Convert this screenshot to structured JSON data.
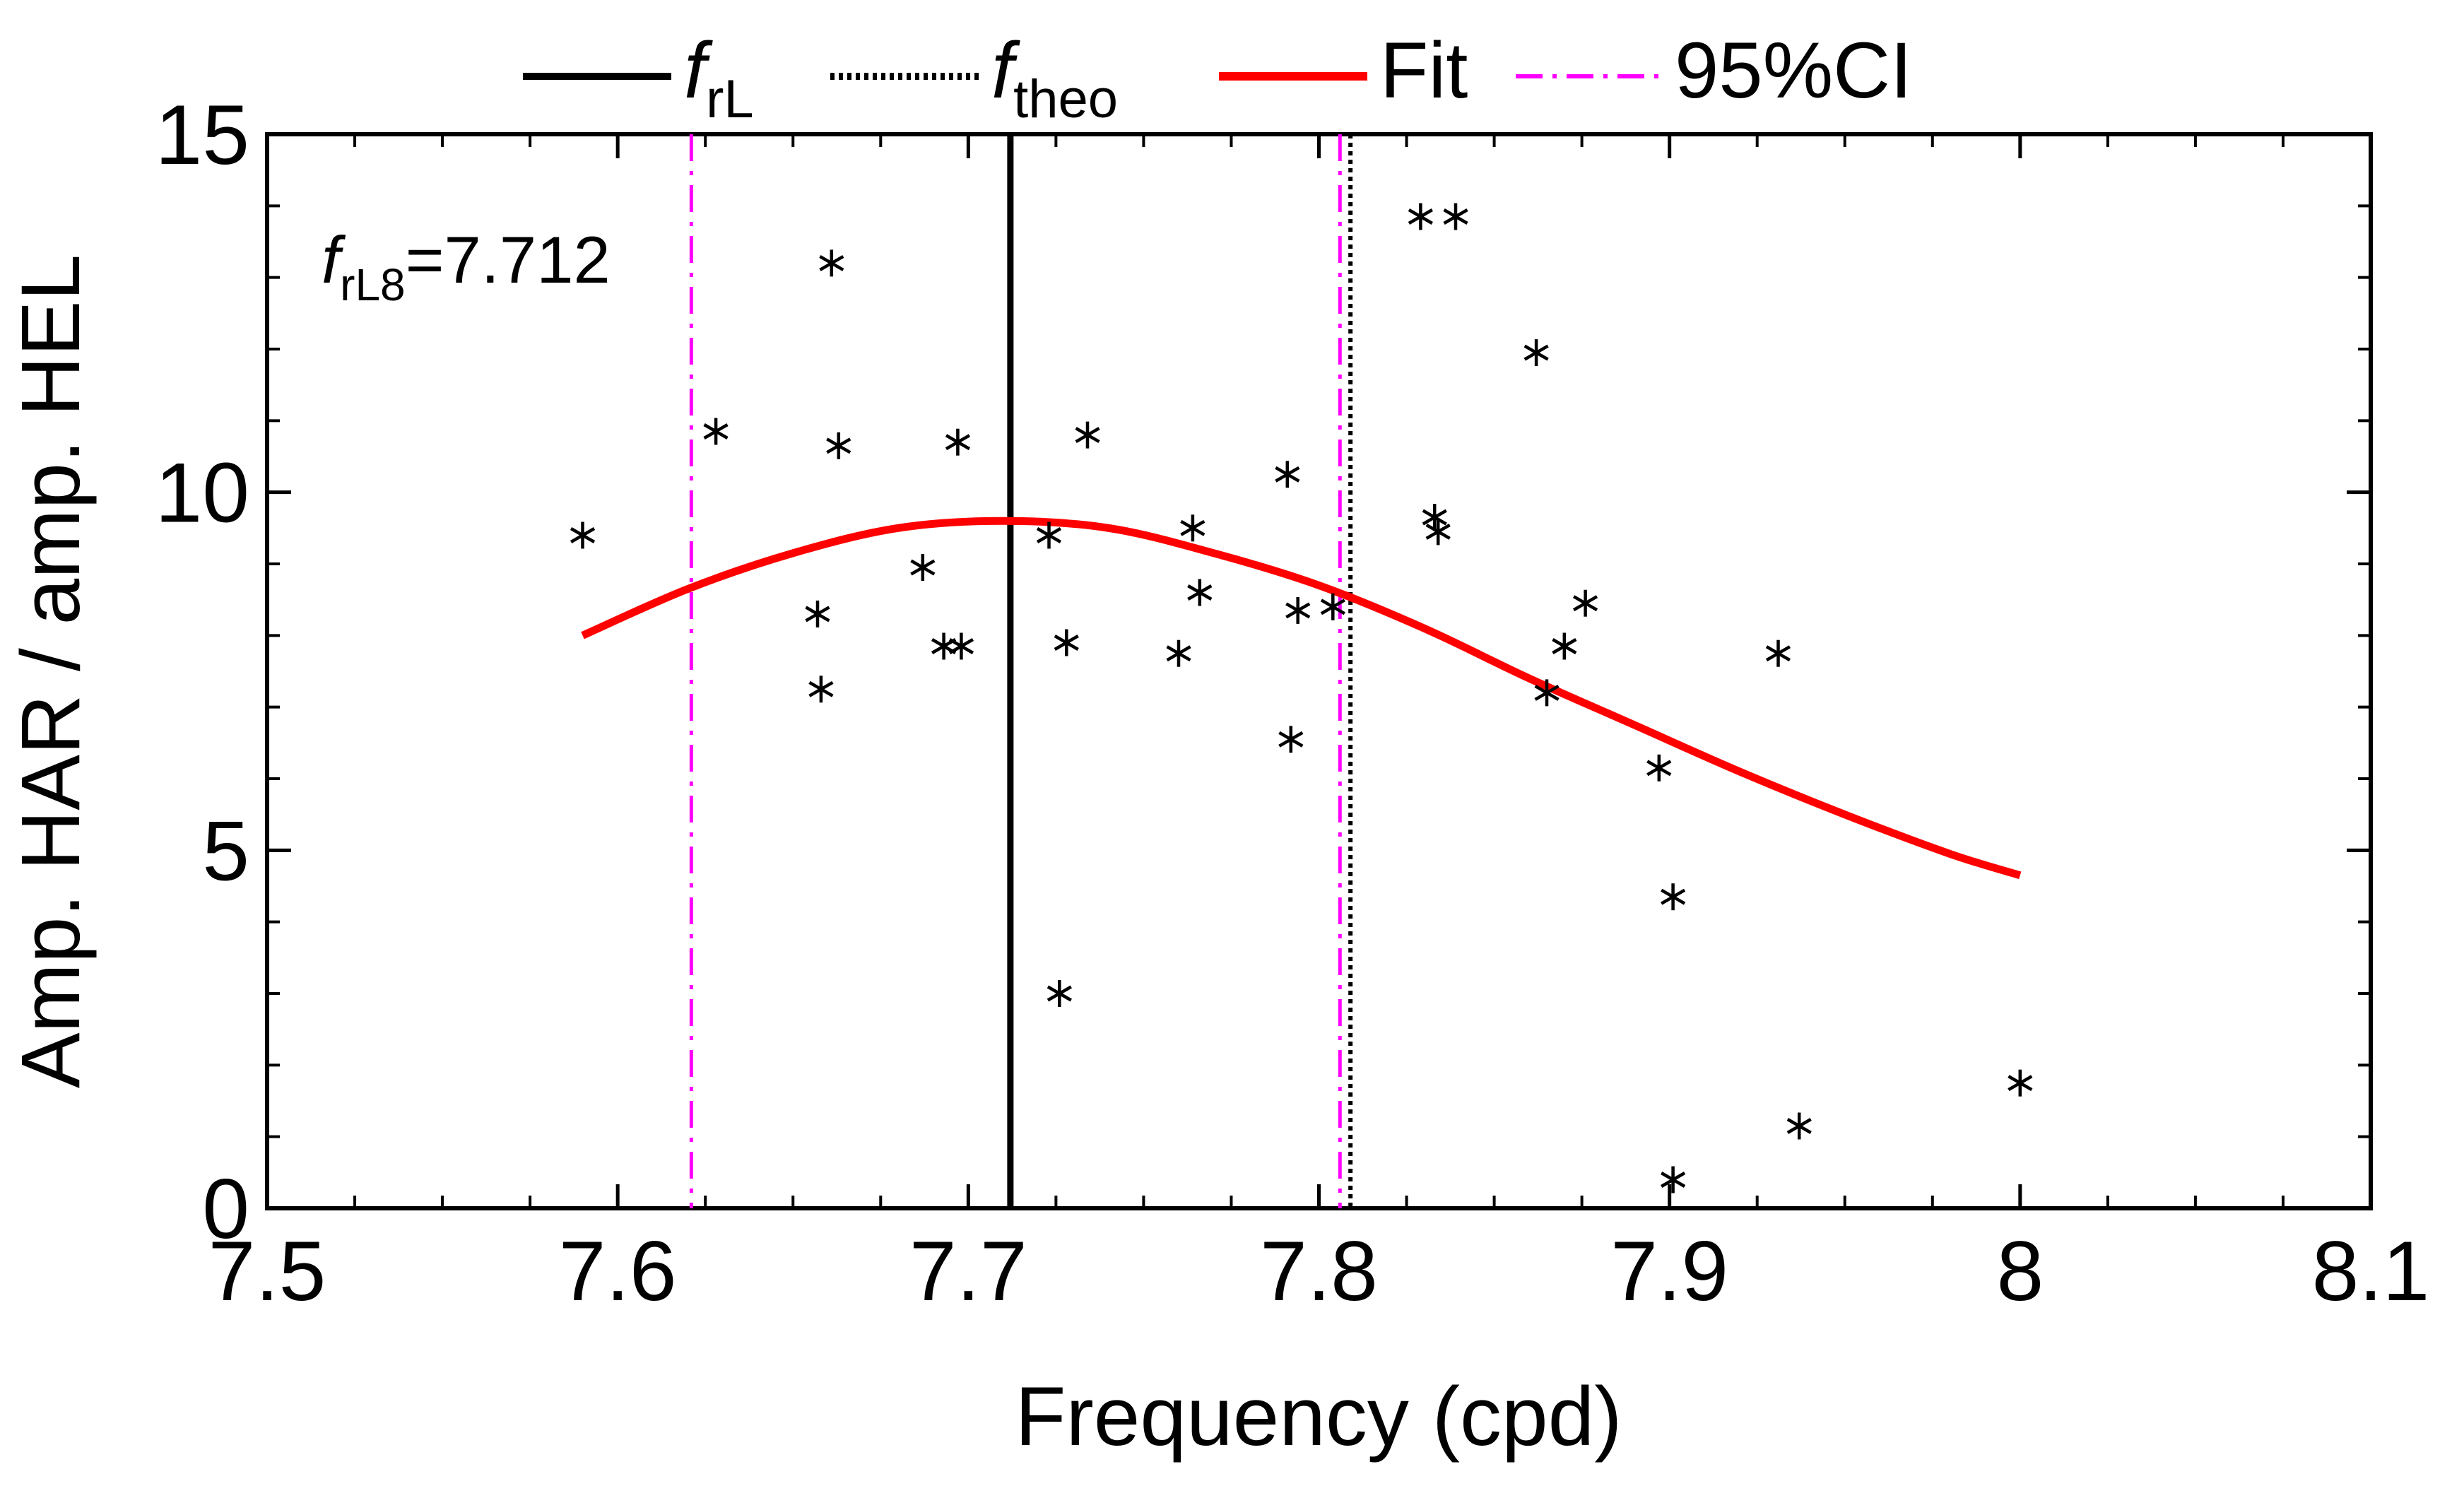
{
  "chart_data": {
    "type": "scatter",
    "xlabel": "Frequency (cpd)",
    "ylabel": "Amp. HAR / amp. HEL",
    "xlim": [
      7.5,
      8.1
    ],
    "ylim": [
      0,
      15
    ],
    "x_ticks": [
      "7.5",
      "7.6",
      "7.7",
      "7.8",
      "7.9",
      "8",
      "8.1"
    ],
    "y_ticks": [
      "0",
      "5",
      "10",
      "15"
    ],
    "grid": false,
    "legend": {
      "placement": "top-outside",
      "entries": [
        {
          "label_italic": "f",
          "label_sub": "rL",
          "style": "solid",
          "color": "#000000"
        },
        {
          "label_italic": "f",
          "label_sub": "theo",
          "style": "dotted",
          "color": "#000000"
        },
        {
          "label": "Fit",
          "style": "solid",
          "color": "#ff0000"
        },
        {
          "label": "95%CI",
          "style": "dashdot",
          "color": "#ff00ff"
        }
      ]
    },
    "annotation": {
      "italic": "f",
      "sub": "rL8",
      "rest": "=7.712"
    },
    "vlines": {
      "f_rL": 7.712,
      "f_theo": 7.809,
      "ci": [
        7.621,
        7.806
      ]
    },
    "fit": {
      "x": [
        7.59,
        7.62,
        7.65,
        7.68,
        7.71,
        7.74,
        7.77,
        7.8,
        7.83,
        7.86,
        7.89,
        7.92,
        7.95,
        7.98,
        8.0
      ],
      "y": [
        8.0,
        8.65,
        9.15,
        9.5,
        9.6,
        9.5,
        9.15,
        8.7,
        8.1,
        7.4,
        6.75,
        6.1,
        5.5,
        4.95,
        4.65
      ]
    },
    "points": {
      "x": [
        7.59,
        7.628,
        7.657,
        7.658,
        7.661,
        7.663,
        7.687,
        7.693,
        7.697,
        7.698,
        7.723,
        7.726,
        7.728,
        7.734,
        7.76,
        7.764,
        7.766,
        7.791,
        7.792,
        7.794,
        7.804,
        7.829,
        7.839,
        7.833,
        7.834,
        7.862,
        7.865,
        7.87,
        7.876,
        7.897,
        7.901,
        7.901,
        7.931,
        7.937,
        8.0
      ],
      "y": [
        9.4,
        10.85,
        8.3,
        7.25,
        13.2,
        10.65,
        8.95,
        7.85,
        10.7,
        7.85,
        9.4,
        3.0,
        7.9,
        10.8,
        7.75,
        9.5,
        8.6,
        10.25,
        6.55,
        8.35,
        8.4,
        13.85,
        13.85,
        9.65,
        9.45,
        11.95,
        7.2,
        7.85,
        8.45,
        6.15,
        0.4,
        4.35,
        7.75,
        1.15,
        1.75
      ]
    }
  }
}
